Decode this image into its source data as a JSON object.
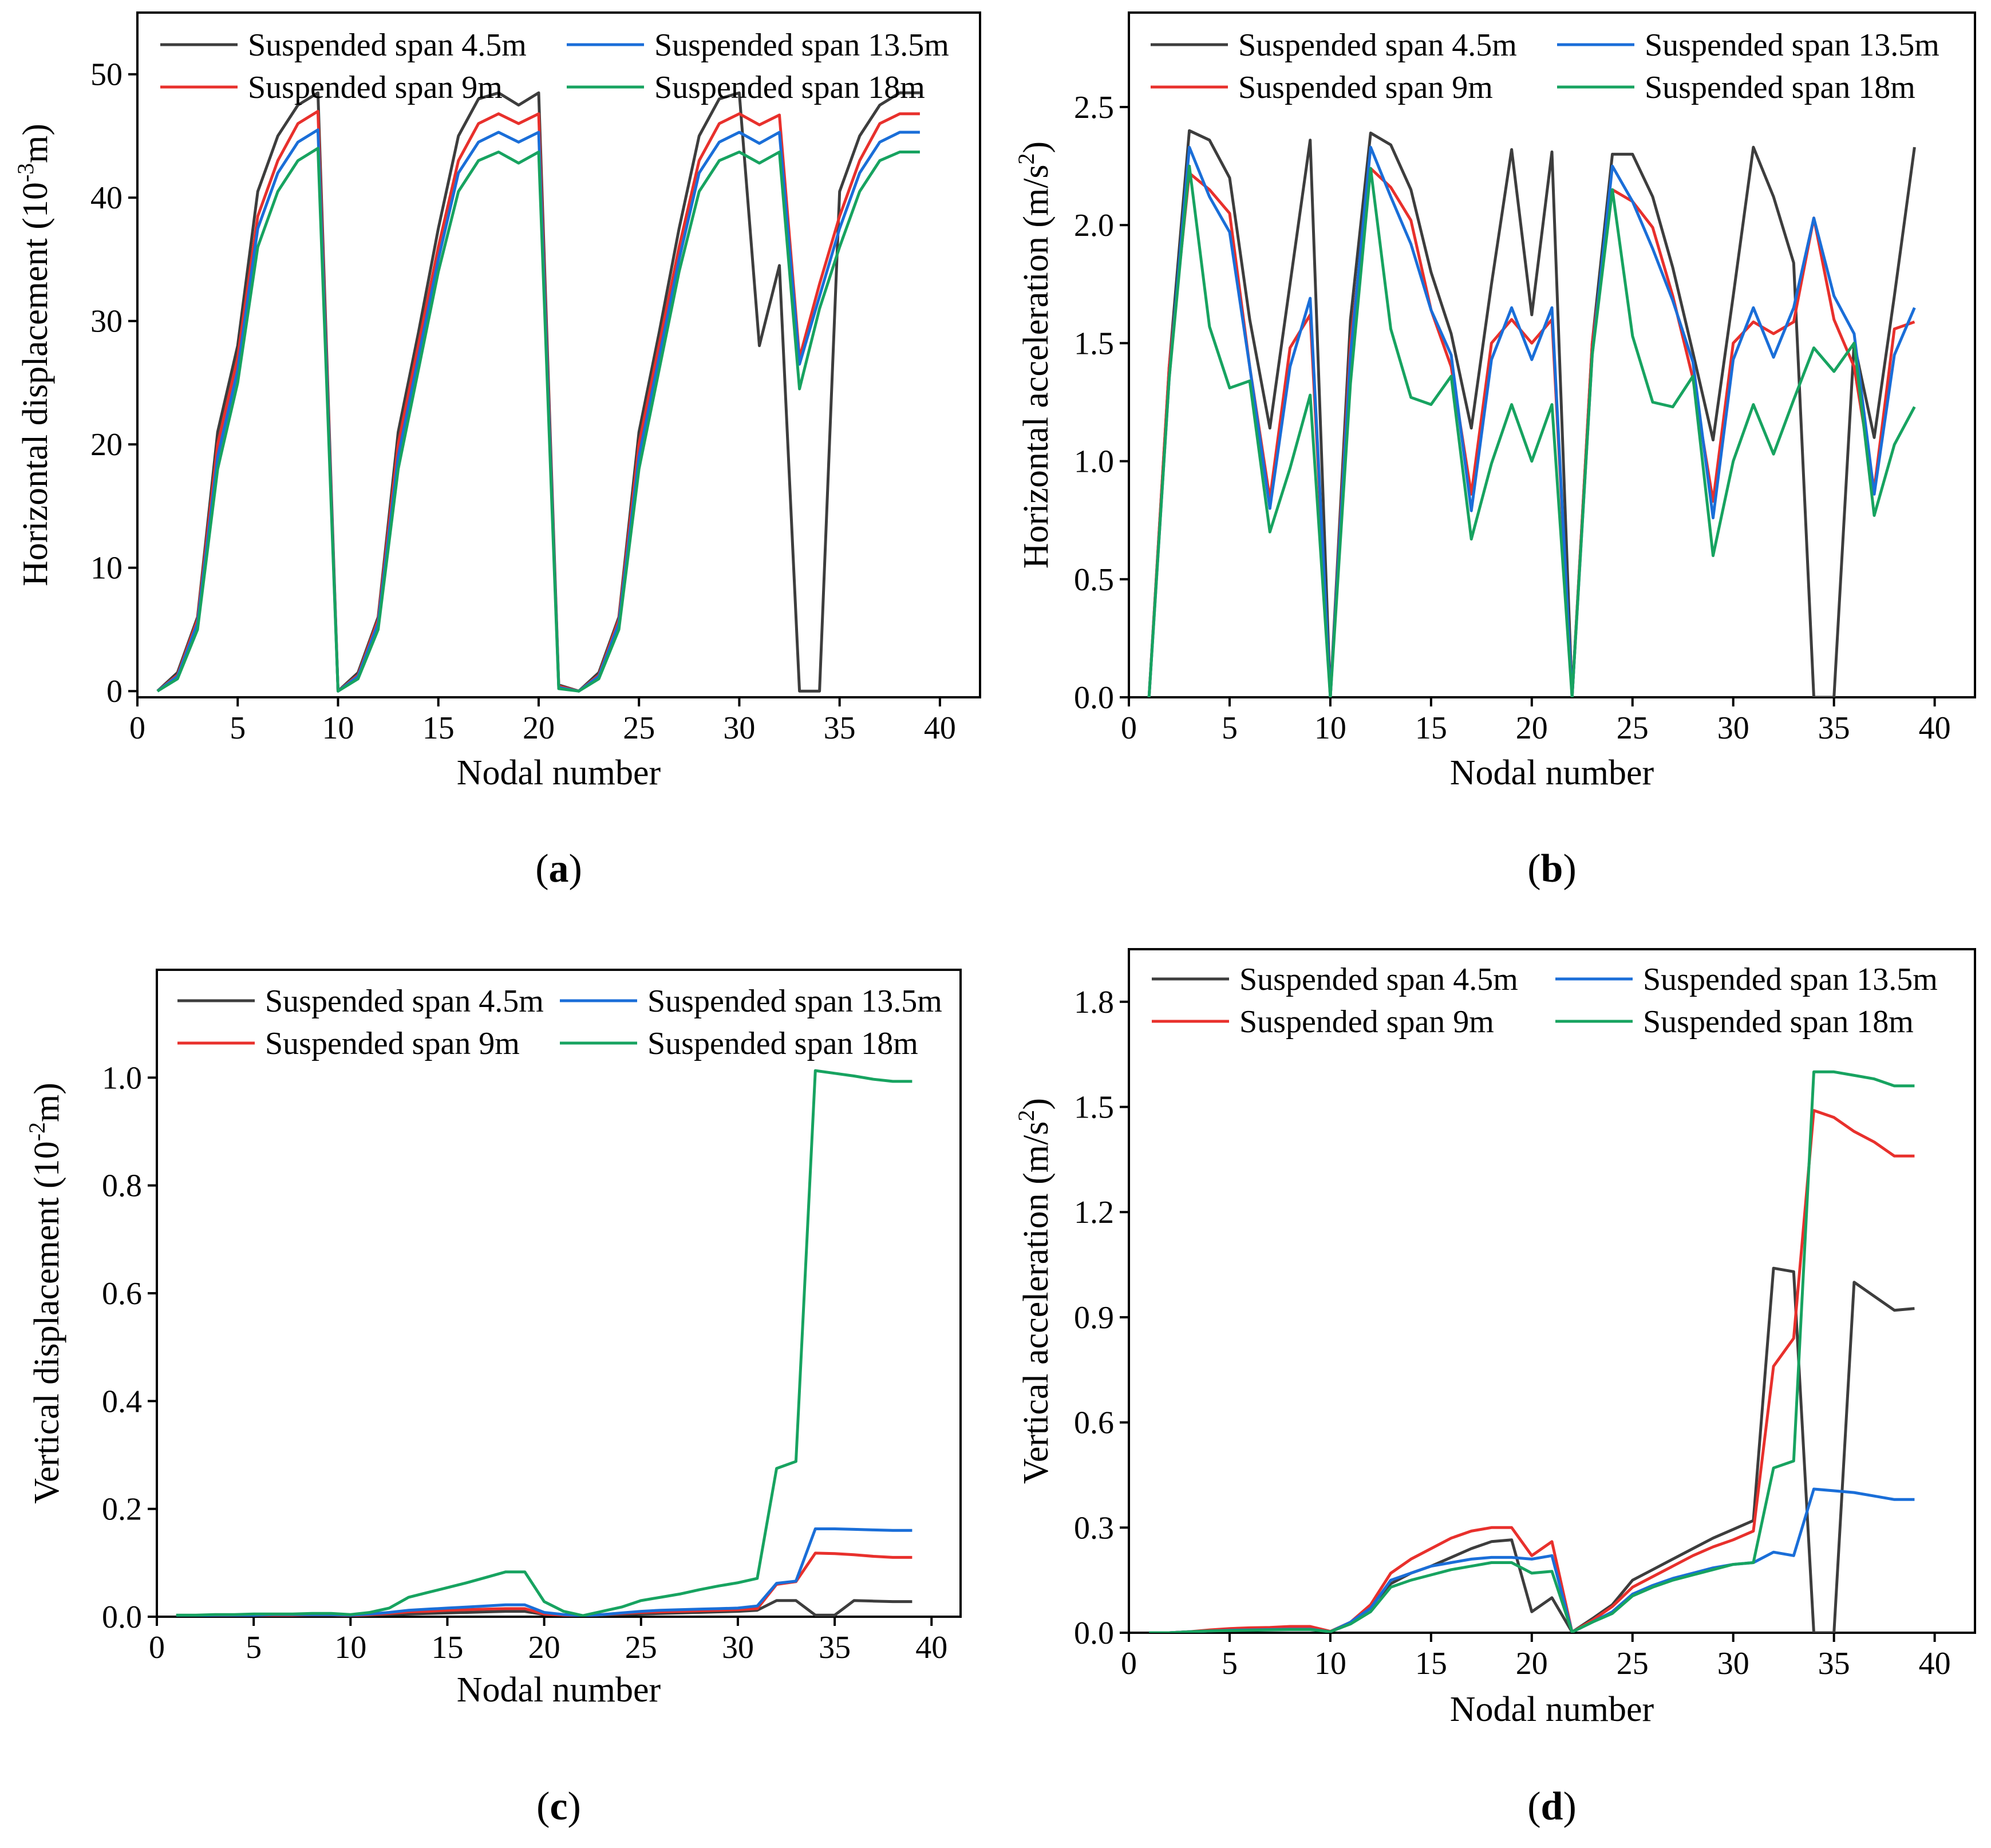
{
  "figure": {
    "panels": [
      {
        "id": "a",
        "label_open": "(",
        "label_letter": "a",
        "label_close": ")"
      },
      {
        "id": "b",
        "label_open": "(",
        "label_letter": "b",
        "label_close": ")"
      },
      {
        "id": "c",
        "label_open": "(",
        "label_letter": "c",
        "label_close": ")"
      },
      {
        "id": "d",
        "label_open": "(",
        "label_letter": "d",
        "label_close": ")"
      }
    ]
  },
  "series_style": [
    {
      "name": "Suspended span 4.5m",
      "color": "#3d3d3d"
    },
    {
      "name": "Suspended span 9m",
      "color": "#e8302c"
    },
    {
      "name": "Suspended span 13.5m",
      "color": "#1a6ed8"
    },
    {
      "name": "Suspended span 18m",
      "color": "#17a360"
    }
  ],
  "chart_data": [
    {
      "id": "a",
      "type": "line",
      "title": "",
      "xlabel": "Nodal number",
      "ylabel": "Horizontal displacement (10-3m)",
      "ylabel_parts": {
        "pre": "Horizontal displacement (10",
        "sup": "-3",
        "post": "m)"
      },
      "xlim": [
        0,
        42
      ],
      "ylim": [
        -0.5,
        55
      ],
      "xticks": [
        0,
        5,
        10,
        15,
        20,
        25,
        30,
        35,
        40
      ],
      "yticks": [
        0,
        10,
        20,
        30,
        40,
        50
      ],
      "legend_position": "top",
      "x": [
        1,
        2,
        3,
        4,
        5,
        6,
        7,
        8,
        9,
        10,
        11,
        12,
        13,
        14,
        15,
        16,
        17,
        18,
        19,
        20,
        21,
        22,
        23,
        24,
        25,
        26,
        27,
        28,
        29,
        30,
        31,
        32,
        33,
        34,
        35,
        36,
        37,
        38,
        39
      ],
      "series": [
        {
          "name": "Suspended span 4.5m",
          "values": [
            0,
            1.5,
            6,
            21,
            28,
            40.5,
            45,
            47.5,
            48.5,
            0,
            1.5,
            6,
            21,
            29,
            37.5,
            45,
            48,
            48.5,
            47.5,
            48.5,
            0.5,
            0,
            1.5,
            6,
            21,
            29,
            37.5,
            45,
            48,
            48.5,
            28,
            34.5,
            0,
            0,
            40.5,
            45,
            47.5,
            48.5,
            48.5
          ]
        },
        {
          "name": "Suspended span 9m",
          "values": [
            0,
            1.3,
            5.8,
            20,
            27,
            38.5,
            43,
            46,
            47,
            0,
            1.3,
            5.8,
            20,
            28,
            36,
            43,
            46,
            46.8,
            46,
            46.8,
            0.4,
            0,
            1.3,
            5.8,
            20,
            28,
            36,
            43,
            46,
            46.8,
            45.9,
            46.7,
            27,
            33,
            38.5,
            43,
            46,
            46.8,
            46.8
          ]
        },
        {
          "name": "Suspended span 13.5m",
          "values": [
            0,
            1.2,
            5.5,
            19,
            26,
            37.5,
            42,
            44.5,
            45.5,
            0,
            1.2,
            5.5,
            19,
            27,
            35,
            42,
            44.5,
            45.3,
            44.5,
            45.3,
            0.3,
            0,
            1.2,
            5.5,
            19,
            27,
            35,
            42,
            44.5,
            45.3,
            44.4,
            45.3,
            26.5,
            32,
            37.5,
            42,
            44.5,
            45.3,
            45.3
          ]
        },
        {
          "name": "Suspended span 18m",
          "values": [
            0,
            1,
            5,
            18,
            25,
            36,
            40.5,
            43,
            44,
            0,
            1,
            5,
            18,
            26,
            34,
            40.5,
            43,
            43.7,
            42.8,
            43.7,
            0.2,
            0,
            1,
            5,
            18,
            26,
            34,
            40.5,
            43,
            43.7,
            42.8,
            43.7,
            24.5,
            31,
            36,
            40.5,
            43,
            43.7,
            43.7
          ]
        }
      ]
    },
    {
      "id": "b",
      "type": "line",
      "title": "",
      "xlabel": "Nodal number",
      "ylabel": "Horizontal acceleration (m/s2)",
      "ylabel_parts": {
        "pre": "Horizontal acceleration (m/s",
        "sup": "2",
        "post": ")"
      },
      "xlim": [
        0,
        42
      ],
      "ylim": [
        0,
        2.9
      ],
      "xticks": [
        0,
        5,
        10,
        15,
        20,
        25,
        30,
        35,
        40
      ],
      "yticks": [
        0.0,
        0.5,
        1.0,
        1.5,
        2.0,
        2.5
      ],
      "legend_position": "top",
      "x": [
        1,
        2,
        3,
        4,
        5,
        6,
        7,
        8,
        9,
        10,
        11,
        12,
        13,
        14,
        15,
        16,
        17,
        18,
        19,
        20,
        21,
        22,
        23,
        24,
        25,
        26,
        27,
        28,
        29,
        30,
        31,
        32,
        33,
        34,
        35,
        36,
        37,
        38,
        39
      ],
      "series": [
        {
          "name": "Suspended span 4.5m",
          "values": [
            0,
            1.4,
            2.4,
            2.36,
            2.2,
            1.6,
            1.14,
            1.75,
            2.36,
            0,
            1.6,
            2.39,
            2.34,
            2.15,
            1.8,
            1.54,
            1.14,
            1.75,
            2.32,
            1.62,
            2.31,
            0,
            1.5,
            2.3,
            2.3,
            2.12,
            1.82,
            1.46,
            1.09,
            1.7,
            2.33,
            2.12,
            1.84,
            0,
            0,
            1.5,
            1.1,
            1.7,
            2.33
          ]
        },
        {
          "name": "Suspended span 9m",
          "values": [
            0,
            1.4,
            2.22,
            2.15,
            2.05,
            1.4,
            0.84,
            1.48,
            1.62,
            0,
            1.5,
            2.24,
            2.16,
            2.02,
            1.64,
            1.4,
            0.86,
            1.5,
            1.6,
            1.5,
            1.6,
            0,
            1.5,
            2.15,
            2.1,
            1.99,
            1.7,
            1.35,
            0.83,
            1.5,
            1.59,
            1.54,
            1.59,
            2.03,
            1.6,
            1.4,
            0.88,
            1.56,
            1.59
          ]
        },
        {
          "name": "Suspended span 13.5m",
          "values": [
            0,
            1.35,
            2.33,
            2.12,
            1.97,
            1.4,
            0.8,
            1.4,
            1.69,
            0,
            1.45,
            2.33,
            2.12,
            1.92,
            1.64,
            1.45,
            0.79,
            1.43,
            1.65,
            1.43,
            1.65,
            0,
            1.45,
            2.25,
            2.1,
            1.9,
            1.68,
            1.42,
            0.76,
            1.43,
            1.65,
            1.44,
            1.65,
            2.03,
            1.7,
            1.54,
            0.86,
            1.45,
            1.65
          ]
        },
        {
          "name": "Suspended span 18m",
          "values": [
            0,
            1.35,
            2.25,
            1.57,
            1.31,
            1.34,
            0.7,
            0.97,
            1.28,
            0,
            1.33,
            2.24,
            1.56,
            1.27,
            1.24,
            1.36,
            0.67,
            0.99,
            1.24,
            1.0,
            1.24,
            0,
            1.45,
            2.15,
            1.53,
            1.25,
            1.23,
            1.36,
            0.6,
            1.0,
            1.24,
            1.03,
            1.26,
            1.48,
            1.38,
            1.5,
            0.77,
            1.07,
            1.23
          ]
        }
      ]
    },
    {
      "id": "c",
      "type": "line",
      "title": "",
      "xlabel": "Nodal number",
      "ylabel": "Vertical displacement (10-2m)",
      "ylabel_parts": {
        "pre": "Vertical displacement (10",
        "sup": "-2",
        "post": "m)"
      },
      "xlim": [
        0,
        41.5
      ],
      "ylim": [
        0,
        1.2
      ],
      "xticks": [
        0,
        5,
        10,
        15,
        20,
        25,
        30,
        35,
        40
      ],
      "yticks": [
        0.0,
        0.2,
        0.4,
        0.6,
        0.8,
        1.0
      ],
      "legend_position": "top",
      "x": [
        1,
        2,
        3,
        4,
        5,
        6,
        7,
        8,
        9,
        10,
        11,
        12,
        13,
        14,
        15,
        16,
        17,
        18,
        19,
        20,
        21,
        22,
        23,
        24,
        25,
        26,
        27,
        28,
        29,
        30,
        31,
        32,
        33,
        34,
        35,
        36,
        37,
        38,
        39
      ],
      "series": [
        {
          "name": "Suspended span 4.5m",
          "values": [
            0.002,
            0.002,
            0.002,
            0.002,
            0.003,
            0.003,
            0.003,
            0.003,
            0.003,
            0.002,
            0.003,
            0.004,
            0.005,
            0.006,
            0.007,
            0.008,
            0.009,
            0.01,
            0.01,
            0.004,
            0.003,
            0.002,
            0.003,
            0.004,
            0.005,
            0.006,
            0.007,
            0.008,
            0.009,
            0.01,
            0.012,
            0.03,
            0.03,
            0.003,
            0.003,
            0.03,
            0.029,
            0.028,
            0.028
          ]
        },
        {
          "name": "Suspended span 9m",
          "values": [
            0.002,
            0.002,
            0.002,
            0.003,
            0.003,
            0.003,
            0.003,
            0.004,
            0.004,
            0.002,
            0.004,
            0.006,
            0.009,
            0.01,
            0.012,
            0.013,
            0.014,
            0.015,
            0.015,
            0.005,
            0.003,
            0.002,
            0.004,
            0.006,
            0.008,
            0.009,
            0.01,
            0.011,
            0.012,
            0.013,
            0.015,
            0.06,
            0.065,
            0.118,
            0.117,
            0.115,
            0.112,
            0.11,
            0.11
          ]
        },
        {
          "name": "Suspended span 13.5m",
          "values": [
            0.002,
            0.002,
            0.003,
            0.003,
            0.003,
            0.004,
            0.004,
            0.004,
            0.004,
            0.003,
            0.005,
            0.008,
            0.012,
            0.014,
            0.016,
            0.018,
            0.02,
            0.022,
            0.022,
            0.008,
            0.004,
            0.002,
            0.004,
            0.007,
            0.01,
            0.012,
            0.013,
            0.014,
            0.015,
            0.016,
            0.02,
            0.062,
            0.066,
            0.163,
            0.163,
            0.162,
            0.161,
            0.16,
            0.16
          ]
        },
        {
          "name": "Suspended span 18m",
          "values": [
            0.003,
            0.003,
            0.004,
            0.004,
            0.005,
            0.005,
            0.005,
            0.006,
            0.006,
            0.004,
            0.008,
            0.016,
            0.036,
            0.045,
            0.054,
            0.063,
            0.073,
            0.083,
            0.083,
            0.028,
            0.01,
            0.002,
            0.01,
            0.018,
            0.03,
            0.036,
            0.042,
            0.05,
            0.057,
            0.063,
            0.071,
            0.275,
            0.288,
            1.013,
            1.008,
            1.003,
            0.997,
            0.993,
            0.993
          ]
        }
      ]
    },
    {
      "id": "d",
      "type": "line",
      "title": "",
      "xlabel": "Nodal number",
      "ylabel": "Vertical acceleration (m/s2)",
      "ylabel_parts": {
        "pre": "Vertical acceleration (m/s",
        "sup": "2",
        "post": ")"
      },
      "xlim": [
        0,
        42
      ],
      "ylim": [
        0,
        1.95
      ],
      "xticks": [
        0,
        5,
        10,
        15,
        20,
        25,
        30,
        35,
        40
      ],
      "yticks": [
        0.0,
        0.3,
        0.6,
        0.9,
        1.2,
        1.5,
        1.8
      ],
      "legend_position": "top",
      "x": [
        1,
        2,
        3,
        4,
        5,
        6,
        7,
        8,
        9,
        10,
        11,
        12,
        13,
        14,
        15,
        16,
        17,
        18,
        19,
        20,
        21,
        22,
        23,
        24,
        25,
        26,
        27,
        28,
        29,
        30,
        31,
        32,
        33,
        34,
        35,
        36,
        37,
        38,
        39
      ],
      "series": [
        {
          "name": "Suspended span 4.5m",
          "values": [
            0,
            0,
            0.003,
            0.005,
            0.008,
            0.01,
            0.01,
            0.012,
            0.012,
            0.003,
            0.03,
            0.075,
            0.14,
            0.17,
            0.19,
            0.215,
            0.24,
            0.26,
            0.265,
            0.06,
            0.1,
            0.002,
            0.04,
            0.08,
            0.15,
            0.18,
            0.21,
            0.24,
            0.27,
            0.295,
            0.32,
            1.04,
            1.03,
            0,
            0,
            1.0,
            0.96,
            0.92,
            0.925
          ]
        },
        {
          "name": "Suspended span 9m",
          "values": [
            0,
            0,
            0.003,
            0.008,
            0.012,
            0.014,
            0.015,
            0.018,
            0.018,
            0.004,
            0.03,
            0.08,
            0.17,
            0.21,
            0.24,
            0.27,
            0.29,
            0.3,
            0.3,
            0.22,
            0.26,
            0.002,
            0.035,
            0.075,
            0.13,
            0.16,
            0.19,
            0.22,
            0.245,
            0.265,
            0.29,
            0.76,
            0.84,
            1.49,
            1.47,
            1.43,
            1.4,
            1.36,
            1.36
          ]
        },
        {
          "name": "Suspended span 13.5m",
          "values": [
            0,
            0,
            0.003,
            0.005,
            0.007,
            0.008,
            0.009,
            0.01,
            0.01,
            0.003,
            0.03,
            0.07,
            0.15,
            0.17,
            0.19,
            0.2,
            0.21,
            0.215,
            0.215,
            0.21,
            0.22,
            0.002,
            0.03,
            0.06,
            0.11,
            0.135,
            0.155,
            0.17,
            0.185,
            0.195,
            0.2,
            0.23,
            0.22,
            0.41,
            0.405,
            0.4,
            0.39,
            0.38,
            0.38
          ]
        },
        {
          "name": "Suspended span 18m",
          "values": [
            0,
            0,
            0.003,
            0.005,
            0.006,
            0.007,
            0.008,
            0.009,
            0.009,
            0.003,
            0.025,
            0.06,
            0.13,
            0.15,
            0.165,
            0.18,
            0.19,
            0.2,
            0.2,
            0.17,
            0.175,
            0.002,
            0.03,
            0.055,
            0.105,
            0.13,
            0.15,
            0.165,
            0.18,
            0.195,
            0.2,
            0.47,
            0.49,
            1.6,
            1.6,
            1.59,
            1.58,
            1.56,
            1.56
          ]
        }
      ]
    }
  ]
}
